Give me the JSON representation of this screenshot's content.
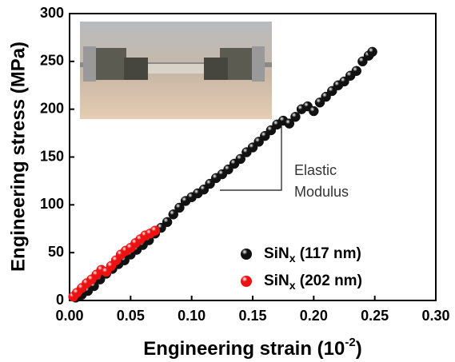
{
  "chart_data": {
    "type": "scatter",
    "x_label": {
      "text": "Engineering strain (10",
      "superscript": "-2",
      "suffix": ")"
    },
    "y_label": "Engineering stress (MPa)",
    "annotation": [
      "Elastic",
      "Modulus"
    ],
    "xlim": [
      0,
      0.3
    ],
    "ylim": [
      0,
      300
    ],
    "xticks": [
      {
        "value": 0,
        "label": "0.00"
      },
      {
        "value": 0.05,
        "label": "0.05"
      },
      {
        "value": 0.1,
        "label": "0.10"
      },
      {
        "value": 0.15,
        "label": "0.15"
      },
      {
        "value": 0.2,
        "label": "0.20"
      },
      {
        "value": 0.25,
        "label": "0.25"
      },
      {
        "value": 0.3,
        "label": "0.30"
      }
    ],
    "yticks": [
      0,
      50,
      100,
      150,
      200,
      250,
      300
    ],
    "series": [
      {
        "name": "SiN",
        "name_subscript": "x",
        "name_suffix": " (117 nm)",
        "color": "#111111",
        "x": [
          0.005,
          0.01,
          0.015,
          0.02,
          0.025,
          0.03,
          0.035,
          0.04,
          0.045,
          0.05,
          0.055,
          0.06,
          0.065,
          0.07,
          0.075,
          0.08,
          0.085,
          0.09,
          0.095,
          0.1,
          0.105,
          0.11,
          0.115,
          0.12,
          0.125,
          0.13,
          0.135,
          0.14,
          0.145,
          0.15,
          0.155,
          0.16,
          0.165,
          0.17,
          0.175,
          0.18,
          0.185,
          0.19,
          0.195,
          0.2,
          0.205,
          0.21,
          0.215,
          0.22,
          0.225,
          0.23,
          0.235,
          0.24,
          0.245,
          0.248
        ],
        "values": [
          3,
          6,
          10,
          15,
          22,
          28,
          33,
          38,
          42,
          48,
          53,
          58,
          63,
          70,
          76,
          82,
          90,
          97,
          104,
          108,
          112,
          116,
          122,
          128,
          132,
          137,
          143,
          148,
          155,
          160,
          166,
          172,
          178,
          184,
          188,
          185,
          192,
          200,
          203,
          198,
          207,
          213,
          219,
          225,
          229,
          235,
          240,
          250,
          256,
          260
        ]
      },
      {
        "name": "SiN",
        "name_subscript": "x",
        "name_suffix": " (202 nm)",
        "color": "#ee1111",
        "x": [
          0.003,
          0.006,
          0.01,
          0.014,
          0.018,
          0.022,
          0.026,
          0.03,
          0.034,
          0.038,
          0.042,
          0.046,
          0.05,
          0.054,
          0.058,
          0.062,
          0.066,
          0.07
        ],
        "values": [
          4,
          8,
          13,
          18,
          22,
          27,
          32,
          30,
          36,
          42,
          48,
          52,
          55,
          60,
          64,
          68,
          70,
          73
        ]
      }
    ]
  }
}
